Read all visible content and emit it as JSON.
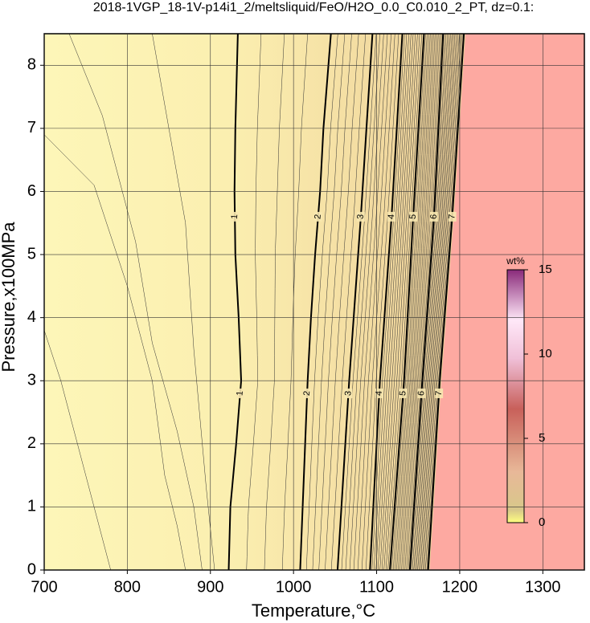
{
  "chart_data": {
    "type": "contour",
    "title": "2018-1VGP_18-1V-p14i1_2/meltsliquid/FeO/H2O_0.0_C0.010_2_PT, dz=0.1:",
    "x_label": "Temperature,°C",
    "y_label": "Pressure,x100MPa",
    "xlim": [
      700,
      1350
    ],
    "ylim": [
      0,
      8.5
    ],
    "xticks": [
      700,
      800,
      900,
      1000,
      1100,
      1200,
      1300
    ],
    "yticks": [
      0,
      1,
      2,
      3,
      4,
      5,
      6,
      7,
      8
    ],
    "grid": true,
    "series": [
      {
        "name": "1",
        "color": "#000000",
        "x": [
          922,
          924,
          931,
          937,
          934,
          930,
          929,
          930,
          933
        ],
        "values": [
          0,
          1,
          2,
          3,
          4,
          5,
          6,
          7,
          8.5
        ]
      },
      {
        "name": "2",
        "color": "#000000",
        "x": [
          1008,
          1011,
          1014,
          1017,
          1021,
          1026,
          1032,
          1036,
          1045
        ],
        "values": [
          0,
          1,
          2,
          3,
          4,
          5,
          6,
          7,
          8.5
        ]
      },
      {
        "name": "3",
        "color": "#000000",
        "x": [
          1053,
          1067,
          1081,
          1095
        ],
        "values": [
          0,
          3,
          5.6,
          8.5
        ]
      },
      {
        "name": "4",
        "color": "#000000",
        "x": [
          1092,
          1104,
          1118,
          1131
        ],
        "values": [
          0,
          3,
          5.6,
          8.5
        ]
      },
      {
        "name": "5",
        "color": "#000000",
        "x": [
          1116,
          1133,
          1144,
          1157
        ],
        "values": [
          0,
          3,
          5.6,
          8.5
        ]
      },
      {
        "name": "6",
        "color": "#000000",
        "x": [
          1140,
          1155,
          1169,
          1180
        ],
        "values": [
          0,
          3,
          5.6,
          8.5
        ]
      },
      {
        "name": "7",
        "color": "#000000",
        "x": [
          1162,
          1176,
          1191,
          1205
        ],
        "values": [
          0,
          3,
          5.6,
          8.5
        ]
      }
    ],
    "colorbar": {
      "label": "wt%",
      "lim": [
        0,
        15
      ],
      "ticks": [
        0,
        5,
        10,
        15
      ]
    }
  }
}
